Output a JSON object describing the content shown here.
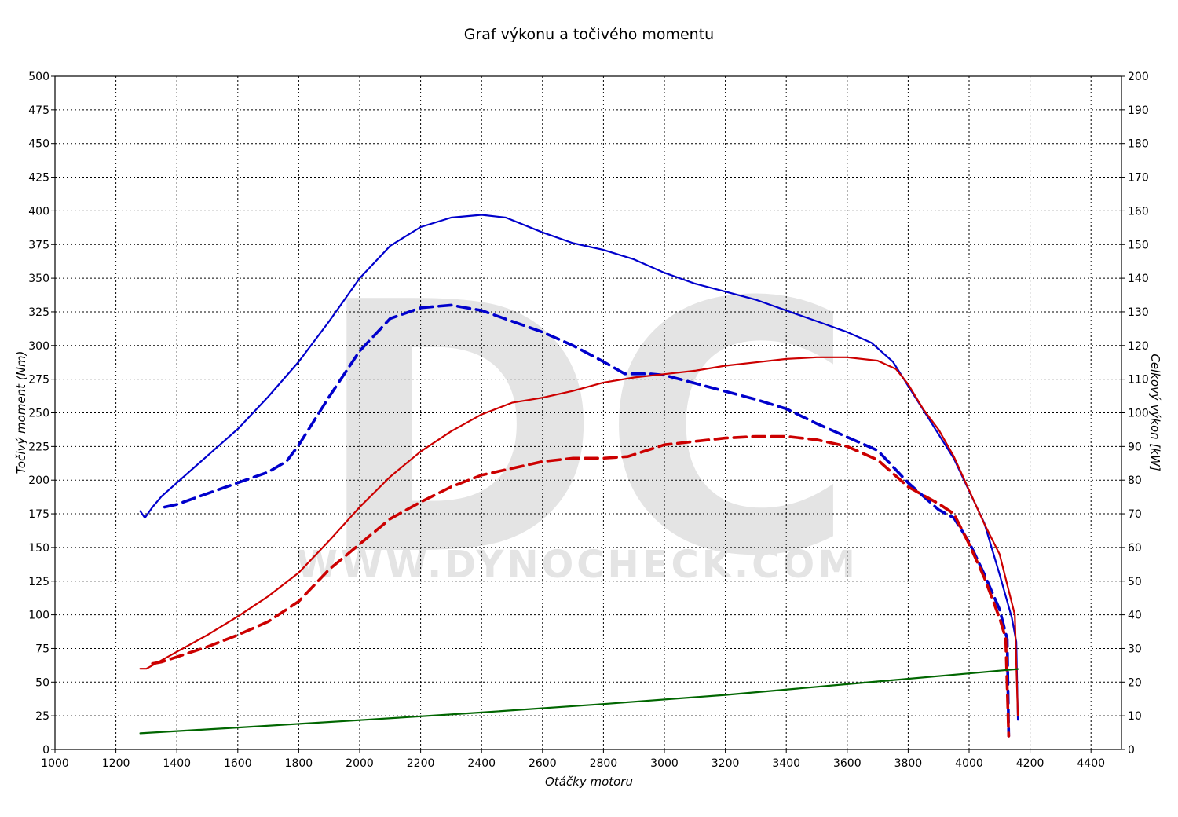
{
  "chart_data": {
    "type": "line",
    "title": "Graf výkonu a točivého momentu",
    "xlabel": "Otáčky motoru",
    "ylabel_left": "Točivý moment (Nm)",
    "ylabel_right": "Celkový výkon [kW]",
    "xlim": [
      1000,
      4500
    ],
    "ylim_left": [
      0,
      500
    ],
    "ylim_right": [
      0,
      200
    ],
    "x_ticks": [
      1000,
      1200,
      1400,
      1600,
      1800,
      2000,
      2200,
      2400,
      2600,
      2800,
      3000,
      3200,
      3400,
      3600,
      3800,
      4000,
      4200,
      4400
    ],
    "y_ticks_left": [
      0,
      25,
      50,
      75,
      100,
      125,
      150,
      175,
      200,
      225,
      250,
      275,
      300,
      325,
      350,
      375,
      400,
      425,
      450,
      475,
      500
    ],
    "y_ticks_right": [
      0,
      10,
      20,
      30,
      40,
      50,
      60,
      70,
      80,
      90,
      100,
      110,
      120,
      130,
      140,
      150,
      160,
      170,
      180,
      190,
      200
    ],
    "grid": true,
    "watermark": {
      "logo": "DC",
      "url": "WWW.DYNOCHECK.COM"
    },
    "series": [
      {
        "key": "torque_tuned",
        "axis": "left",
        "color": "#0000cc",
        "dash": false,
        "x": [
          1280,
          1295,
          1320,
          1350,
          1400,
          1500,
          1600,
          1700,
          1800,
          1900,
          2000,
          2100,
          2200,
          2300,
          2400,
          2480,
          2600,
          2700,
          2800,
          2900,
          3000,
          3100,
          3200,
          3300,
          3400,
          3500,
          3600,
          3680,
          3750,
          3850,
          3950,
          4050,
          4100,
          4140,
          4155,
          4160
        ],
        "y": [
          177,
          172,
          180,
          188,
          198,
          218,
          238,
          262,
          288,
          318,
          350,
          374,
          388,
          395,
          397,
          395,
          384,
          376,
          371,
          364,
          354,
          346,
          340,
          334,
          326,
          318,
          310,
          302,
          288,
          252,
          216,
          168,
          130,
          98,
          80,
          22
        ]
      },
      {
        "key": "torque_stock",
        "axis": "left",
        "color": "#0000cc",
        "dash": true,
        "x": [
          1360,
          1400,
          1500,
          1600,
          1700,
          1760,
          1800,
          1900,
          2000,
          2100,
          2200,
          2300,
          2400,
          2500,
          2600,
          2700,
          2800,
          2870,
          2950,
          3000,
          3100,
          3200,
          3300,
          3400,
          3500,
          3600,
          3700,
          3800,
          3900,
          3950,
          4000,
          4050,
          4100,
          4125,
          4130
        ],
        "y": [
          180,
          182,
          190,
          198,
          206,
          214,
          226,
          262,
          296,
          320,
          328,
          330,
          326,
          318,
          310,
          300,
          288,
          279,
          279,
          278,
          272,
          266,
          260,
          253,
          242,
          232,
          222,
          198,
          178,
          172,
          154,
          130,
          104,
          82,
          10
        ]
      },
      {
        "key": "power_tuned",
        "axis": "right",
        "color": "#cc0000",
        "dash": false,
        "x": [
          1280,
          1300,
          1400,
          1500,
          1600,
          1700,
          1800,
          1900,
          2000,
          2100,
          2200,
          2300,
          2400,
          2500,
          2600,
          2700,
          2800,
          2900,
          3000,
          3100,
          3200,
          3300,
          3400,
          3500,
          3600,
          3700,
          3760,
          3800,
          3850,
          3900,
          3950,
          4000,
          4050,
          4100,
          4150,
          4160
        ],
        "y": [
          24,
          24,
          29,
          34,
          39.5,
          45.5,
          52.5,
          62,
          72,
          81,
          88.5,
          94.5,
          99.5,
          103,
          104.5,
          106.5,
          109,
          110.5,
          111.5,
          112.5,
          114,
          115,
          116,
          116.5,
          116.5,
          115.5,
          113,
          108.5,
          101,
          95,
          87,
          77,
          67,
          58,
          40,
          10
        ]
      },
      {
        "key": "power_stock",
        "axis": "right",
        "color": "#cc0000",
        "dash": true,
        "x": [
          1320,
          1350,
          1400,
          1500,
          1600,
          1700,
          1800,
          1900,
          2000,
          2100,
          2200,
          2300,
          2400,
          2500,
          2600,
          2700,
          2800,
          2880,
          3000,
          3100,
          3200,
          3300,
          3400,
          3500,
          3600,
          3700,
          3800,
          3900,
          3950,
          4000,
          4050,
          4100,
          4120,
          4130
        ],
        "y": [
          25.5,
          26,
          27.5,
          30.5,
          34,
          38,
          44,
          53.5,
          61,
          68.5,
          73.5,
          78,
          81.5,
          83.5,
          85.5,
          86.5,
          86.5,
          87,
          90.5,
          91.5,
          92.5,
          93,
          93,
          92,
          90,
          86,
          78,
          73,
          70,
          61,
          51,
          39,
          33,
          4
        ]
      },
      {
        "key": "losses",
        "axis": "right",
        "color": "#006600",
        "dash": false,
        "x": [
          1280,
          1600,
          2000,
          2400,
          2800,
          3200,
          3600,
          4000,
          4160
        ],
        "y": [
          4.8,
          6.5,
          8.7,
          11.0,
          13.5,
          16.2,
          19.4,
          22.6,
          23.9
        ]
      }
    ]
  }
}
